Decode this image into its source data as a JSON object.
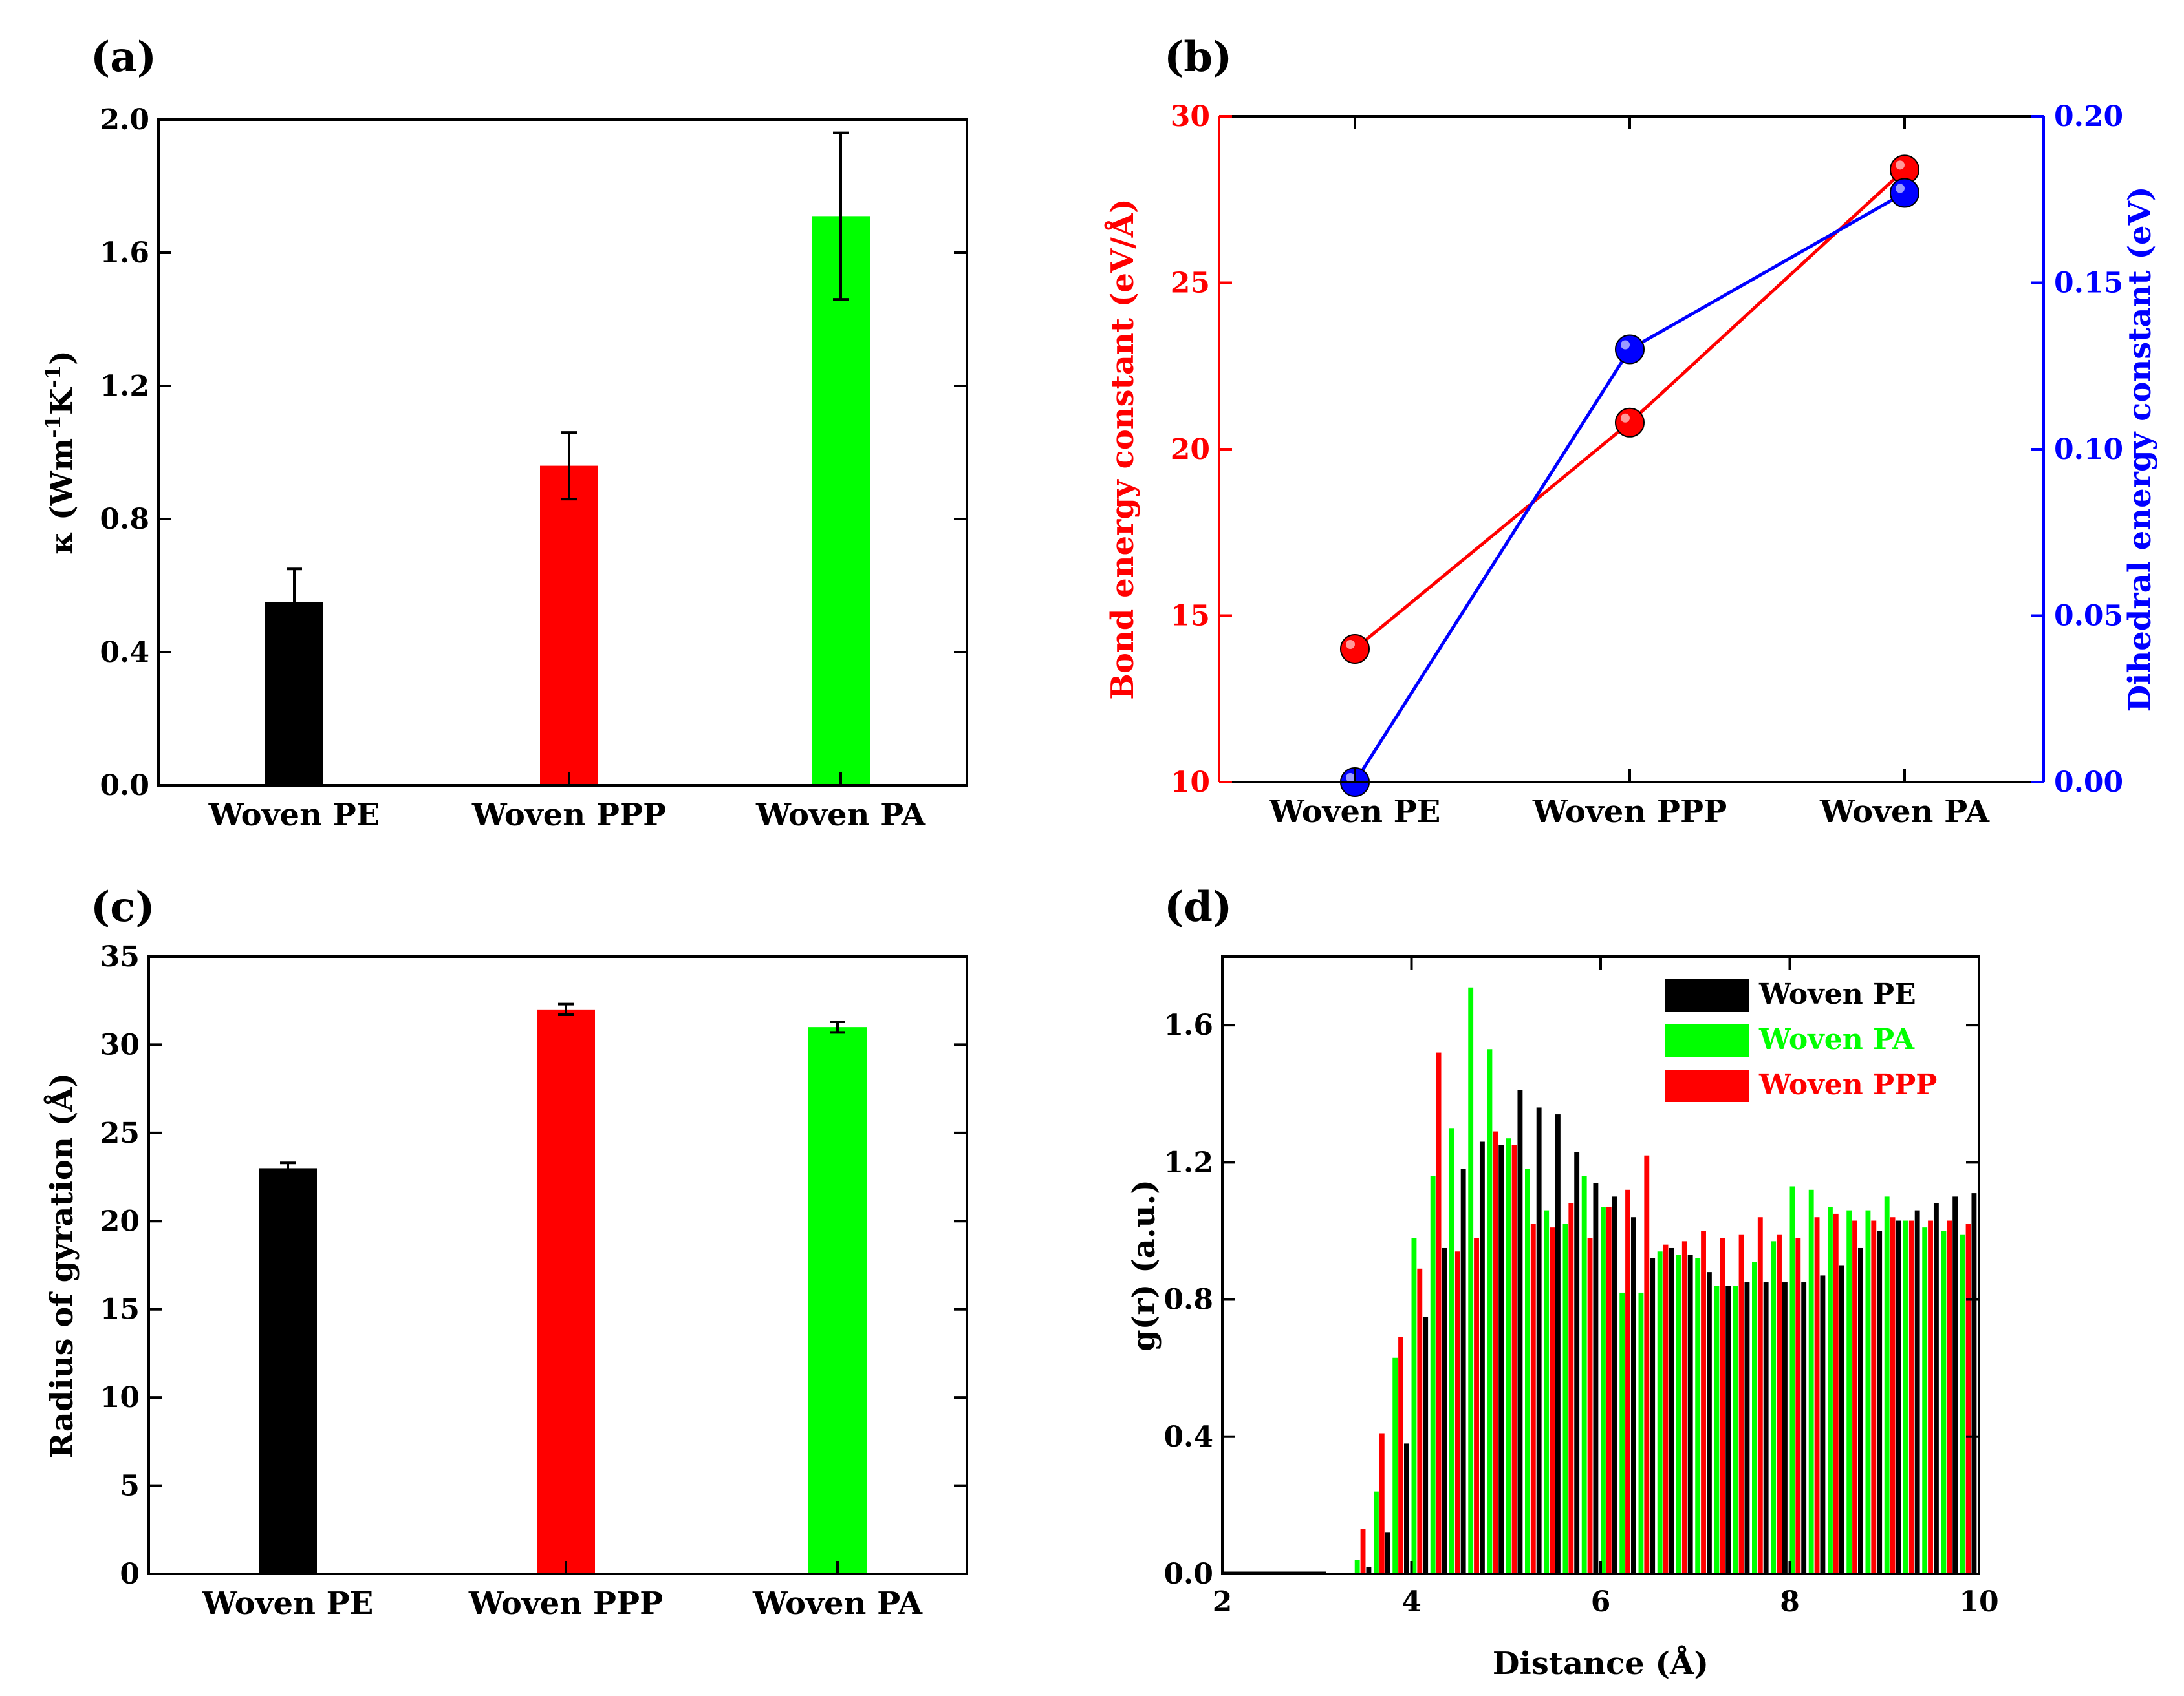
{
  "colors": {
    "black": "#000000",
    "red": "#ff0000",
    "green": "#00ff00",
    "blue": "#0000ff",
    "frame": "#000000"
  },
  "chart_data": [
    {
      "panel": "(a)",
      "type": "bar",
      "categories": [
        "Woven PE",
        "Woven PPP",
        "Woven PA"
      ],
      "values": [
        0.55,
        0.96,
        1.71
      ],
      "errors": [
        0.1,
        0.1,
        0.25
      ],
      "colors": [
        "#000000",
        "#ff0000",
        "#00ff00"
      ],
      "ylabel_main": "κ (Wm",
      "ylabel_sup1": "-1",
      "ylabel_mid": "K",
      "ylabel_sup2": "-1",
      "ylabel_end": ")",
      "ylim": [
        0.0,
        2.0
      ],
      "yticks": [
        "0.0",
        "0.4",
        "0.8",
        "1.2",
        "1.6",
        "2.0"
      ],
      "ytick_values": [
        0.0,
        0.4,
        0.8,
        1.2,
        1.6,
        2.0
      ],
      "grid": false
    },
    {
      "panel": "(b)",
      "type": "line",
      "categories": [
        "Woven PE",
        "Woven PPP",
        "Woven PA"
      ],
      "series": [
        {
          "values": [
            14.0,
            20.8,
            28.4
          ],
          "axis": "left",
          "color": "#ff0000"
        },
        {
          "values": [
            0.0,
            0.13,
            0.177
          ],
          "axis": "right",
          "color": "#0000ff"
        }
      ],
      "ylabel_left": "Bond energy constant (eV/Å)",
      "ylabel_right": "Dihedral energy constant (eV)",
      "ylim_left": [
        10,
        30
      ],
      "ylim_right": [
        0.0,
        0.2
      ],
      "yticks_left": [
        "10",
        "15",
        "20",
        "25",
        "30"
      ],
      "ytick_values_left": [
        10,
        15,
        20,
        25,
        30
      ],
      "yticks_right": [
        "0.00",
        "0.05",
        "0.10",
        "0.15",
        "0.20"
      ],
      "ytick_values_right": [
        0.0,
        0.05,
        0.1,
        0.15,
        0.2
      ],
      "grid": false
    },
    {
      "panel": "(c)",
      "type": "bar",
      "categories": [
        "Woven PE",
        "Woven PPP",
        "Woven PA"
      ],
      "values": [
        23.0,
        32.0,
        31.0
      ],
      "errors": [
        0.3,
        0.3,
        0.3
      ],
      "colors": [
        "#000000",
        "#ff0000",
        "#00ff00"
      ],
      "ylabel": "Radius of gyration (Å)",
      "ylim": [
        0,
        35
      ],
      "yticks": [
        "0",
        "5",
        "10",
        "15",
        "20",
        "25",
        "30",
        "35"
      ],
      "ytick_values": [
        0,
        5,
        10,
        15,
        20,
        25,
        30,
        35
      ],
      "grid": false
    },
    {
      "panel": "(d)",
      "type": "bar",
      "xlabel": "Distance (Å)",
      "ylabel": "g(r) (a.u.)",
      "xlim": [
        2,
        10
      ],
      "ylim": [
        0.0,
        1.8
      ],
      "xticks": [
        "2",
        "4",
        "6",
        "8",
        "10"
      ],
      "xtick_values": [
        2,
        4,
        6,
        8,
        10
      ],
      "yticks": [
        "0.0",
        "0.4",
        "0.8",
        "1.2",
        "1.6"
      ],
      "ytick_values": [
        0.0,
        0.4,
        0.8,
        1.2,
        1.6
      ],
      "x": [
        3.0,
        3.2,
        3.4,
        3.6,
        3.8,
        4.0,
        4.2,
        4.4,
        4.6,
        4.8,
        5.0,
        5.2,
        5.4,
        5.6,
        5.8,
        6.0,
        6.2,
        6.4,
        6.6,
        6.8,
        7.0,
        7.2,
        7.4,
        7.6,
        7.8,
        8.0,
        8.2,
        8.4,
        8.6,
        8.8,
        9.0,
        9.2,
        9.4,
        9.6,
        9.8
      ],
      "legend_position": "top-right",
      "series": [
        {
          "name": "Woven PE",
          "color": "#000000",
          "values": [
            0.0,
            0.0,
            0.02,
            0.12,
            0.38,
            0.75,
            0.95,
            1.18,
            1.26,
            1.25,
            1.41,
            1.36,
            1.34,
            1.23,
            1.14,
            1.1,
            1.04,
            0.92,
            0.95,
            0.93,
            0.88,
            0.84,
            0.85,
            0.85,
            0.85,
            0.85,
            0.87,
            0.9,
            0.95,
            1.0,
            1.03,
            1.06,
            1.08,
            1.1,
            1.11
          ]
        },
        {
          "name": "Woven PA",
          "color": "#00ff00",
          "values": [
            0.0,
            0.0,
            0.04,
            0.24,
            0.63,
            0.98,
            1.16,
            1.3,
            1.71,
            1.53,
            1.27,
            1.18,
            1.06,
            1.02,
            1.16,
            1.07,
            0.82,
            0.82,
            0.94,
            0.93,
            0.92,
            0.84,
            0.84,
            0.91,
            0.97,
            1.13,
            1.12,
            1.07,
            1.06,
            1.06,
            1.1,
            1.03,
            1.01,
            1.0,
            0.99
          ]
        },
        {
          "name": "Woven PPP",
          "color": "#ff0000",
          "values": [
            0.0,
            0.0,
            0.13,
            0.41,
            0.69,
            0.89,
            1.52,
            0.94,
            0.98,
            1.29,
            1.25,
            1.02,
            1.01,
            1.08,
            0.98,
            1.07,
            1.12,
            1.22,
            0.96,
            0.97,
            1.0,
            0.98,
            0.99,
            1.04,
            0.99,
            0.98,
            1.04,
            1.05,
            1.03,
            1.03,
            1.04,
            1.03,
            1.03,
            1.03,
            1.02
          ]
        }
      ],
      "grid": false
    }
  ]
}
